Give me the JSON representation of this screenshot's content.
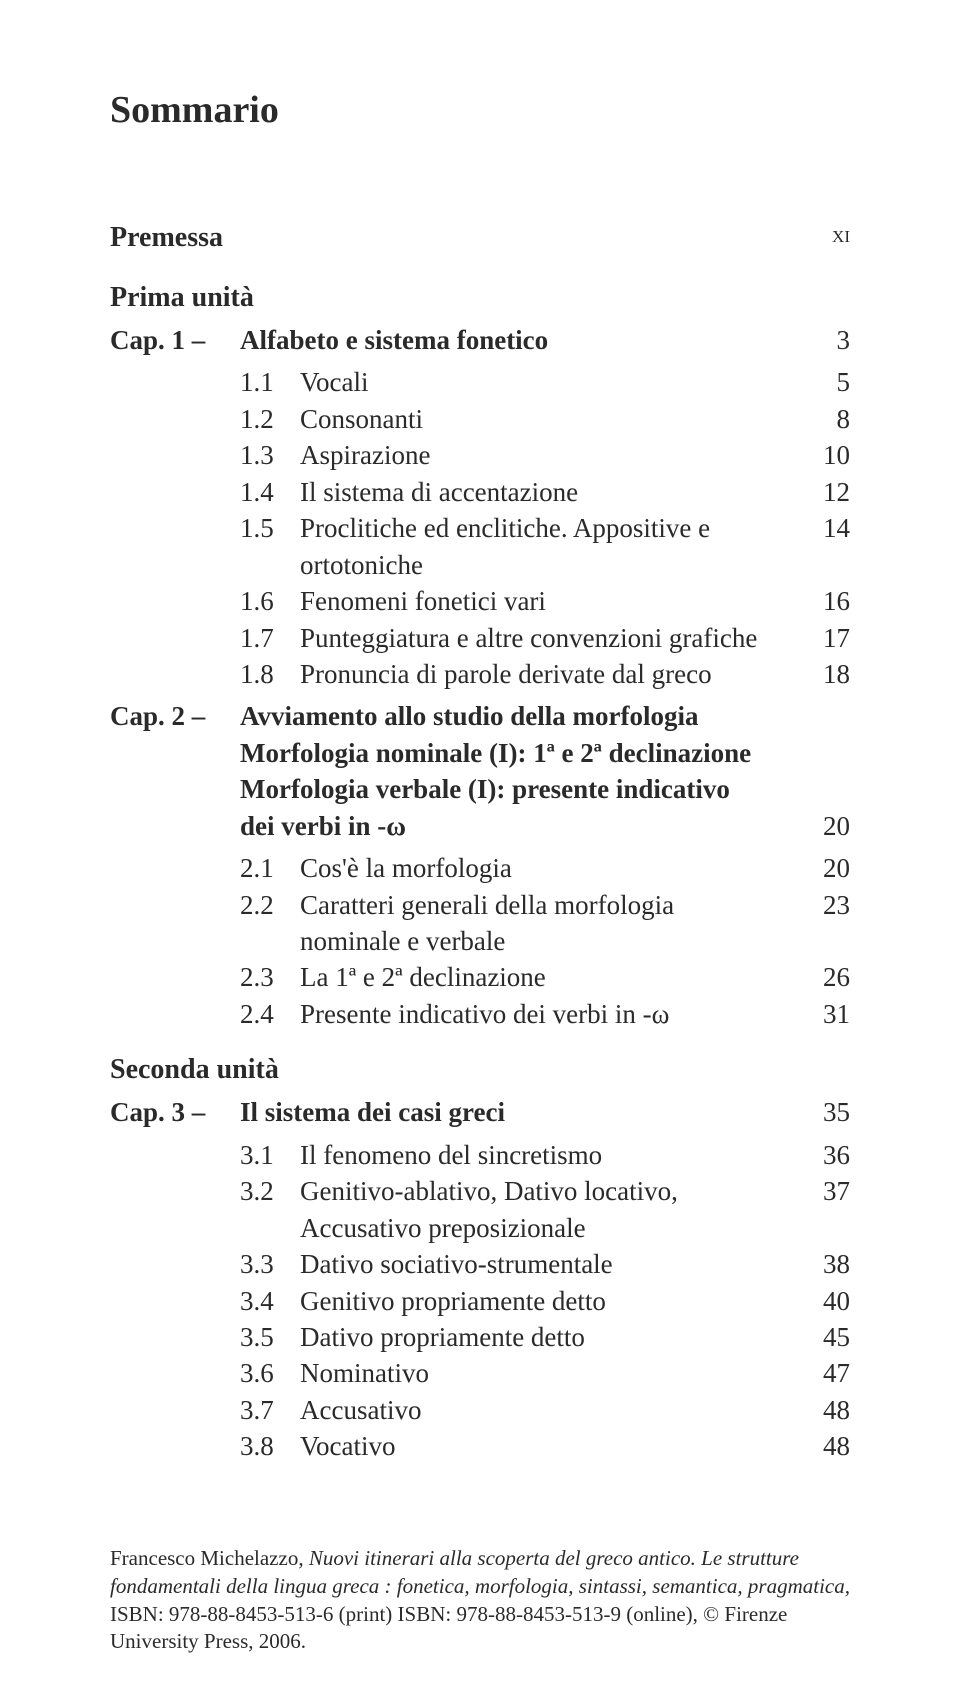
{
  "title": "Sommario",
  "premessa": {
    "label": "Premessa",
    "page": "xi"
  },
  "unit1": {
    "label": "Prima unità"
  },
  "cap1": {
    "num": "Cap. 1 –",
    "title": "Alfabeto e sistema fonetico",
    "page": "3",
    "rows": [
      {
        "n": "1.1",
        "t": "Vocali",
        "p": "5"
      },
      {
        "n": "1.2",
        "t": "Consonanti",
        "p": "8"
      },
      {
        "n": "1.3",
        "t": "Aspirazione",
        "p": "10"
      },
      {
        "n": "1.4",
        "t": "Il sistema di accentazione",
        "p": "12"
      },
      {
        "n": "1.5",
        "t": "Proclitiche ed enclitiche. Appositive e ortotoniche",
        "p": "14"
      },
      {
        "n": "1.6",
        "t": "Fenomeni fonetici vari",
        "p": "16"
      },
      {
        "n": "1.7",
        "t": "Punteggiatura e altre convenzioni grafiche",
        "p": "17"
      },
      {
        "n": "1.8",
        "t": "Pronuncia di parole derivate dal greco",
        "p": "18"
      }
    ]
  },
  "cap2": {
    "num": "Cap. 2 –",
    "title_l1": "Avviamento allo studio della morfologia",
    "title_l2": "Morfologia nominale (I): 1ª e 2ª declinazione",
    "title_l3": "Morfologia verbale (I): presente indicativo",
    "title_l4": "dei verbi in -ω",
    "page": "20",
    "rows": [
      {
        "n": "2.1",
        "t": "Cos'è la morfologia",
        "p": "20"
      },
      {
        "n": "2.2",
        "t": "Caratteri generali della morfologia nominale e verbale",
        "p": "23"
      },
      {
        "n": "2.3",
        "t": "La 1ª e 2ª declinazione",
        "p": "26"
      },
      {
        "n": "2.4",
        "t": "Presente indicativo dei verbi in -ω",
        "p": "31"
      }
    ]
  },
  "unit2": {
    "label": "Seconda unità"
  },
  "cap3": {
    "num": "Cap. 3 –",
    "title": "Il sistema dei casi greci",
    "page": "35",
    "rows": [
      {
        "n": "3.1",
        "t": "Il fenomeno del sincretismo",
        "p": "36"
      },
      {
        "n": "3.2",
        "t": "Genitivo-ablativo, Dativo locativo, Accusativo preposizionale",
        "p": "37"
      },
      {
        "n": "3.3",
        "t": "Dativo sociativo-strumentale",
        "p": "38"
      },
      {
        "n": "3.4",
        "t": "Genitivo propriamente detto",
        "p": "40"
      },
      {
        "n": "3.5",
        "t": "Dativo propriamente detto",
        "p": "45"
      },
      {
        "n": "3.6",
        "t": "Nominativo",
        "p": "47"
      },
      {
        "n": "3.7",
        "t": "Accusativo",
        "p": "48"
      },
      {
        "n": "3.8",
        "t": "Vocativo",
        "p": "48"
      }
    ]
  },
  "footer": {
    "author": "Francesco Michelazzo, ",
    "book_title": "Nuovi itinerari alla scoperta del greco antico. Le strutture fondamentali della lingua greca : fonetica, morfologia, sintassi, semantica, pragmatica,",
    "isbn_line": "ISBN: 978-88-8453-513-6 (print) ISBN: 978-88-8453-513-9 (online), © Firenze University Press, 2006."
  }
}
